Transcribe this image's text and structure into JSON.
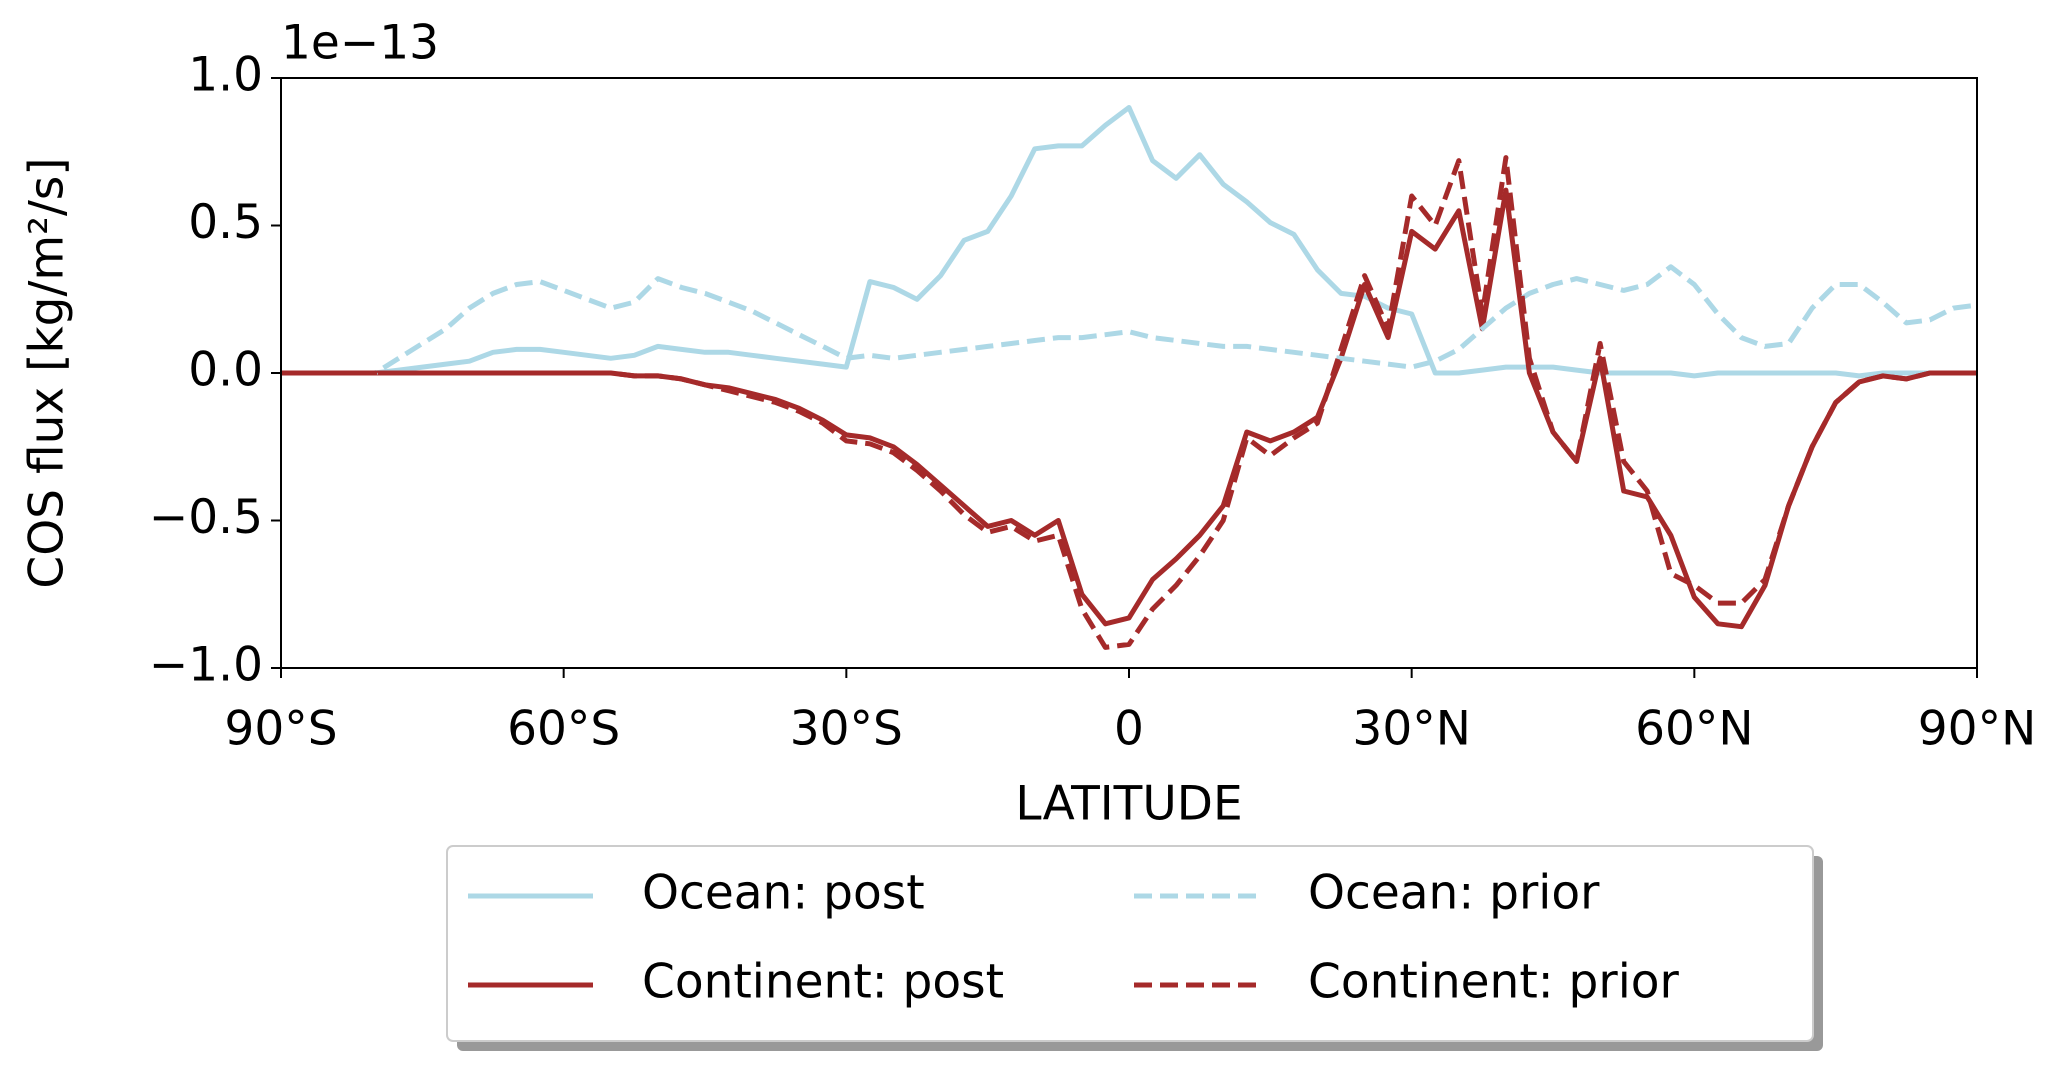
{
  "chart_data": {
    "type": "line",
    "y_offset_label": "1e−13",
    "xlabel": "LATITUDE",
    "ylabel": "COS flux [kg/m²/s]",
    "x": [
      -90,
      -87.5,
      -85,
      -82.5,
      -80,
      -77.5,
      -75,
      -72.5,
      -70,
      -67.5,
      -65,
      -62.5,
      -60,
      -57.5,
      -55,
      -52.5,
      -50,
      -47.5,
      -45,
      -42.5,
      -40,
      -37.5,
      -35,
      -32.5,
      -30,
      -27.5,
      -25,
      -22.5,
      -20,
      -17.5,
      -15,
      -12.5,
      -10,
      -7.5,
      -5,
      -2.5,
      0,
      2.5,
      5,
      7.5,
      10,
      12.5,
      15,
      17.5,
      20,
      22.5,
      25,
      27.5,
      30,
      32.5,
      35,
      37.5,
      40,
      42.5,
      45,
      47.5,
      50,
      52.5,
      55,
      57.5,
      60,
      62.5,
      65,
      67.5,
      70,
      72.5,
      75,
      77.5,
      80,
      82.5,
      85,
      87.5,
      90
    ],
    "series": [
      {
        "name": "Ocean: post",
        "color": "#add8e6",
        "dash": false,
        "values": [
          0,
          0,
          0,
          0,
          0,
          0.01,
          0.02,
          0.03,
          0.04,
          0.07,
          0.08,
          0.08,
          0.07,
          0.06,
          0.05,
          0.06,
          0.09,
          0.08,
          0.07,
          0.07,
          0.06,
          0.05,
          0.04,
          0.03,
          0.02,
          0.31,
          0.29,
          0.25,
          0.33,
          0.45,
          0.48,
          0.6,
          0.76,
          0.77,
          0.77,
          0.84,
          0.9,
          0.72,
          0.66,
          0.74,
          0.64,
          0.58,
          0.51,
          0.47,
          0.35,
          0.27,
          0.26,
          0.22,
          0.2,
          0,
          0,
          0.01,
          0.02,
          0.02,
          0.02,
          0.01,
          0,
          0,
          0,
          0,
          -0.01,
          0,
          0,
          0,
          0,
          0,
          0,
          -0.01,
          0,
          0,
          0,
          0,
          0
        ]
      },
      {
        "name": "Continent: post",
        "color": "#a52a2a",
        "dash": false,
        "values": [
          0,
          0,
          0,
          0,
          0,
          0,
          0,
          0,
          0,
          0,
          0,
          0,
          0,
          0,
          0,
          -0.01,
          -0.01,
          -0.02,
          -0.04,
          -0.05,
          -0.07,
          -0.09,
          -0.12,
          -0.16,
          -0.21,
          -0.22,
          -0.25,
          -0.31,
          -0.38,
          -0.45,
          -0.52,
          -0.5,
          -0.55,
          -0.5,
          -0.75,
          -0.85,
          -0.83,
          -0.7,
          -0.63,
          -0.55,
          -0.45,
          -0.2,
          -0.23,
          -0.2,
          -0.15,
          0.05,
          0.3,
          0.12,
          0.48,
          0.42,
          0.55,
          0.15,
          0.62,
          0,
          -0.2,
          -0.3,
          0.05,
          -0.4,
          -0.42,
          -0.55,
          -0.76,
          -0.85,
          -0.86,
          -0.72,
          -0.45,
          -0.25,
          -0.1,
          -0.03,
          -0.01,
          -0.02,
          0,
          0,
          0
        ]
      },
      {
        "name": "Ocean: prior",
        "color": "#add8e6",
        "dash": true,
        "values": [
          0,
          0,
          0,
          0,
          0,
          0.05,
          0.1,
          0.15,
          0.22,
          0.27,
          0.3,
          0.31,
          0.28,
          0.25,
          0.22,
          0.24,
          0.32,
          0.29,
          0.27,
          0.24,
          0.21,
          0.17,
          0.13,
          0.09,
          0.05,
          0.06,
          0.05,
          0.06,
          0.07,
          0.08,
          0.09,
          0.1,
          0.11,
          0.12,
          0.12,
          0.13,
          0.14,
          0.12,
          0.11,
          0.1,
          0.09,
          0.09,
          0.08,
          0.07,
          0.06,
          0.05,
          0.04,
          0.03,
          0.02,
          0.04,
          0.08,
          0.15,
          0.22,
          0.27,
          0.3,
          0.32,
          0.3,
          0.28,
          0.3,
          0.36,
          0.3,
          0.2,
          0.12,
          0.09,
          0.1,
          0.22,
          0.3,
          0.3,
          0.24,
          0.17,
          0.18,
          0.22,
          0.23
        ]
      },
      {
        "name": "Continent: prior",
        "color": "#a52a2a",
        "dash": true,
        "values": [
          0,
          0,
          0,
          0,
          0,
          0,
          0,
          0,
          0,
          0,
          0,
          0,
          0,
          0,
          0,
          -0.01,
          -0.01,
          -0.02,
          -0.04,
          -0.06,
          -0.08,
          -0.1,
          -0.13,
          -0.17,
          -0.23,
          -0.24,
          -0.27,
          -0.33,
          -0.4,
          -0.48,
          -0.54,
          -0.52,
          -0.57,
          -0.55,
          -0.8,
          -0.93,
          -0.92,
          -0.8,
          -0.72,
          -0.62,
          -0.5,
          -0.22,
          -0.28,
          -0.22,
          -0.17,
          0.08,
          0.33,
          0.15,
          0.6,
          0.5,
          0.72,
          0.2,
          0.73,
          0.05,
          -0.2,
          -0.3,
          0.1,
          -0.3,
          -0.4,
          -0.68,
          -0.72,
          -0.78,
          -0.78,
          -0.7,
          -0.45,
          -0.25,
          -0.1,
          -0.03,
          -0.01,
          -0.02,
          0,
          0,
          0
        ]
      }
    ],
    "xlim": [
      -90,
      90
    ],
    "xticks": [
      {
        "value": -90,
        "label": "90°S"
      },
      {
        "value": -60,
        "label": "60°S"
      },
      {
        "value": -30,
        "label": "30°S"
      },
      0,
      {
        "value": 30,
        "label": "30°N"
      },
      {
        "value": 60,
        "label": "60°N"
      },
      {
        "value": 90,
        "label": "90°N"
      }
    ],
    "ylim": [
      -1,
      1
    ],
    "yticks": [
      {
        "value": -1,
        "label": "−1.0"
      },
      {
        "value": -0.5,
        "label": "−0.5"
      },
      {
        "value": 0,
        "label": "0.0"
      },
      {
        "value": 0.5,
        "label": "0.5"
      },
      {
        "value": 1,
        "label": "1.0"
      }
    ],
    "legend": "bottom"
  }
}
